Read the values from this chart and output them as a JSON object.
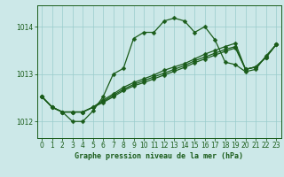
{
  "title": "Graphe pression niveau de la mer (hPa)",
  "background_color": "#cce8e8",
  "grid_color": "#99cccc",
  "line_color": "#1a5c1a",
  "xlim": [
    -0.5,
    23.5
  ],
  "ylim": [
    1011.65,
    1014.45
  ],
  "yticks": [
    1012,
    1013,
    1014
  ],
  "xticks": [
    0,
    1,
    2,
    3,
    4,
    5,
    6,
    7,
    8,
    9,
    10,
    11,
    12,
    13,
    14,
    15,
    16,
    17,
    18,
    19,
    20,
    21,
    22,
    23
  ],
  "series": [
    [
      1012.52,
      1012.3,
      1012.2,
      1012.0,
      1012.0,
      1012.22,
      1012.52,
      1013.0,
      1013.12,
      1013.75,
      1013.88,
      1013.88,
      1014.12,
      1014.18,
      1014.12,
      1013.88,
      1014.0,
      1013.72,
      1013.25,
      1013.2,
      1013.05,
      1013.1,
      1013.38,
      1013.62
    ],
    [
      1012.52,
      1012.3,
      1012.2,
      1012.2,
      1012.2,
      1012.3,
      1012.45,
      1012.58,
      1012.72,
      1012.82,
      1012.9,
      1012.98,
      1013.08,
      1013.15,
      1013.22,
      1013.32,
      1013.42,
      1013.5,
      1013.58,
      1013.65,
      1013.1,
      1013.15,
      1013.35,
      1013.62
    ],
    [
      1012.52,
      1012.3,
      1012.2,
      1012.2,
      1012.2,
      1012.3,
      1012.42,
      1012.55,
      1012.68,
      1012.78,
      1012.86,
      1012.94,
      1013.02,
      1013.1,
      1013.18,
      1013.28,
      1013.36,
      1013.44,
      1013.52,
      1013.58,
      1013.1,
      1013.15,
      1013.35,
      1013.62
    ],
    [
      1012.52,
      1012.3,
      1012.2,
      1012.2,
      1012.2,
      1012.3,
      1012.4,
      1012.52,
      1012.65,
      1012.75,
      1012.82,
      1012.9,
      1012.98,
      1013.06,
      1013.14,
      1013.24,
      1013.32,
      1013.4,
      1013.48,
      1013.55,
      1013.1,
      1013.15,
      1013.35,
      1013.62
    ]
  ],
  "marker_size": 2.5,
  "linewidth": 0.9,
  "tick_fontsize": 5.5,
  "xlabel_fontsize": 6.0
}
